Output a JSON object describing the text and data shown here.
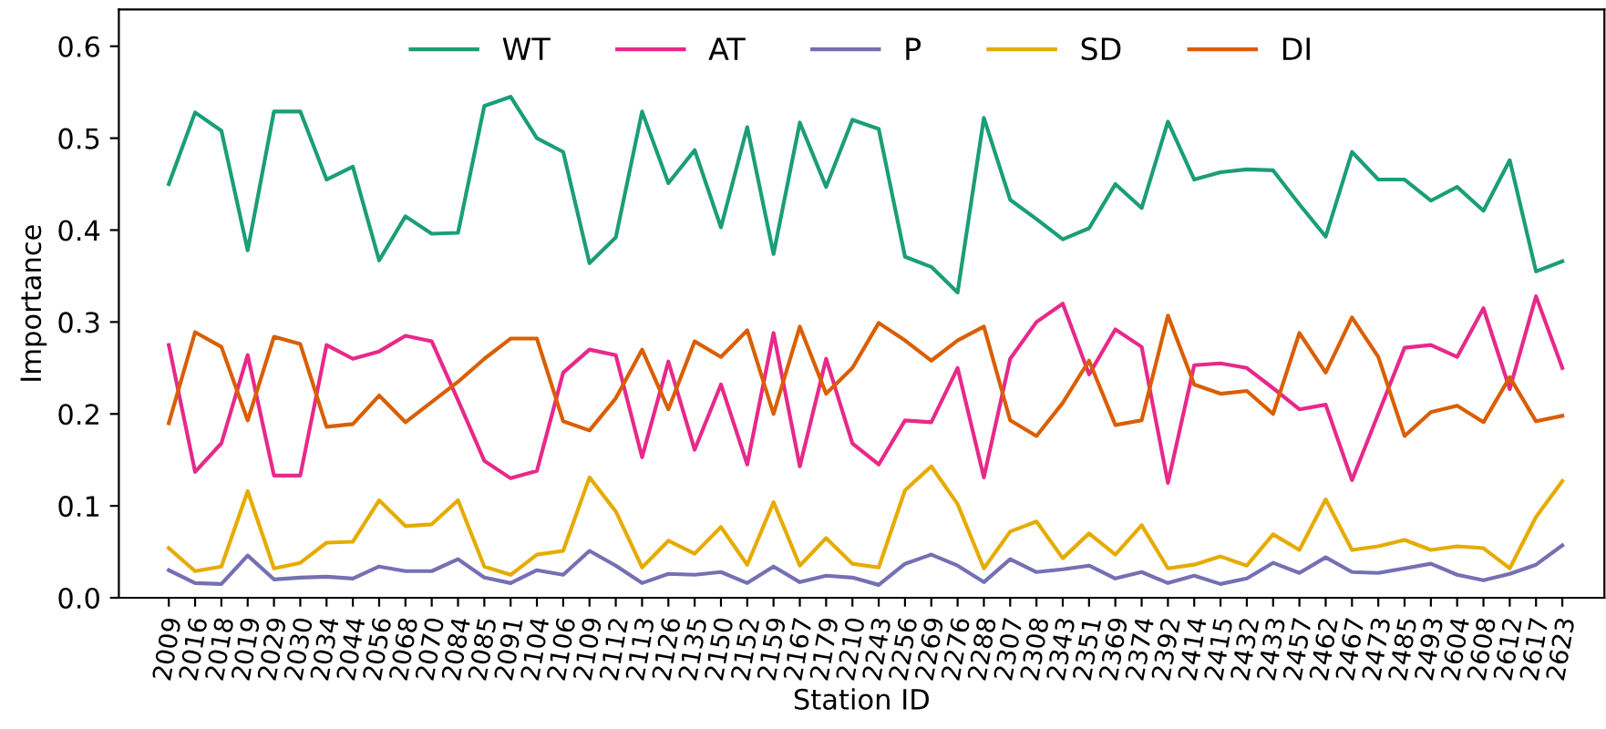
{
  "chart_data": {
    "type": "line",
    "xlabel": "Station ID",
    "ylabel": "Importance",
    "categories": [
      "2009",
      "2016",
      "2018",
      "2019",
      "2029",
      "2030",
      "2034",
      "2044",
      "2056",
      "2068",
      "2070",
      "2084",
      "2085",
      "2091",
      "2104",
      "2106",
      "2109",
      "2112",
      "2113",
      "2126",
      "2135",
      "2150",
      "2152",
      "2159",
      "2167",
      "2179",
      "2210",
      "2243",
      "2256",
      "2269",
      "2276",
      "2288",
      "2307",
      "2308",
      "2343",
      "2351",
      "2369",
      "2374",
      "2392",
      "2414",
      "2415",
      "2432",
      "2433",
      "2457",
      "2462",
      "2467",
      "2473",
      "2485",
      "2493",
      "2604",
      "2608",
      "2612",
      "2617",
      "2623"
    ],
    "series": [
      {
        "name": "WT",
        "color": "#1b9e77",
        "values": [
          0.45,
          0.528,
          0.508,
          0.378,
          0.529,
          0.529,
          0.455,
          0.469,
          0.367,
          0.415,
          0.396,
          0.397,
          0.535,
          0.545,
          0.5,
          0.485,
          0.364,
          0.392,
          0.529,
          0.451,
          0.487,
          0.403,
          0.512,
          0.374,
          0.517,
          0.447,
          0.52,
          0.51,
          0.371,
          0.36,
          0.332,
          0.522,
          0.433,
          0.412,
          0.39,
          0.402,
          0.45,
          0.424,
          0.518,
          0.455,
          0.463,
          0.466,
          0.465,
          0.428,
          0.393,
          0.485,
          0.455,
          0.455,
          0.432,
          0.447,
          0.421,
          0.476,
          0.355,
          0.366
        ]
      },
      {
        "name": "AT",
        "color": "#e7298a",
        "values": [
          0.275,
          0.137,
          0.168,
          0.264,
          0.133,
          0.133,
          0.275,
          0.26,
          0.268,
          0.285,
          0.279,
          0.215,
          0.149,
          0.13,
          0.138,
          0.245,
          0.27,
          0.264,
          0.153,
          0.257,
          0.161,
          0.232,
          0.145,
          0.288,
          0.143,
          0.26,
          0.168,
          0.145,
          0.193,
          0.191,
          0.25,
          0.131,
          0.26,
          0.3,
          0.32,
          0.243,
          0.292,
          0.273,
          0.125,
          0.253,
          0.255,
          0.25,
          0.228,
          0.205,
          0.21,
          0.128,
          0.2,
          0.272,
          0.275,
          0.262,
          0.315,
          0.227,
          0.328,
          0.25
        ]
      },
      {
        "name": "P",
        "color": "#7570b3",
        "values": [
          0.03,
          0.016,
          0.015,
          0.046,
          0.02,
          0.022,
          0.023,
          0.021,
          0.034,
          0.029,
          0.029,
          0.042,
          0.022,
          0.016,
          0.03,
          0.025,
          0.051,
          0.035,
          0.016,
          0.026,
          0.025,
          0.028,
          0.016,
          0.034,
          0.017,
          0.024,
          0.022,
          0.014,
          0.037,
          0.047,
          0.035,
          0.017,
          0.042,
          0.028,
          0.031,
          0.035,
          0.021,
          0.028,
          0.016,
          0.024,
          0.015,
          0.021,
          0.038,
          0.027,
          0.044,
          0.028,
          0.027,
          0.032,
          0.037,
          0.025,
          0.019,
          0.026,
          0.036,
          0.057
        ]
      },
      {
        "name": "SD",
        "color": "#e6ab02",
        "values": [
          0.054,
          0.029,
          0.034,
          0.116,
          0.032,
          0.038,
          0.06,
          0.061,
          0.106,
          0.078,
          0.08,
          0.106,
          0.034,
          0.025,
          0.047,
          0.051,
          0.131,
          0.094,
          0.033,
          0.062,
          0.048,
          0.077,
          0.036,
          0.104,
          0.035,
          0.065,
          0.037,
          0.033,
          0.117,
          0.143,
          0.102,
          0.032,
          0.072,
          0.083,
          0.043,
          0.07,
          0.047,
          0.079,
          0.032,
          0.036,
          0.045,
          0.035,
          0.069,
          0.052,
          0.107,
          0.052,
          0.056,
          0.063,
          0.052,
          0.056,
          0.054,
          0.032,
          0.088,
          0.127
        ]
      },
      {
        "name": "DI",
        "color": "#d95f02",
        "values": [
          0.19,
          0.289,
          0.273,
          0.193,
          0.284,
          0.276,
          0.186,
          0.189,
          0.22,
          0.191,
          0.213,
          0.235,
          0.26,
          0.282,
          0.282,
          0.192,
          0.182,
          0.217,
          0.27,
          0.205,
          0.279,
          0.262,
          0.291,
          0.2,
          0.295,
          0.222,
          0.25,
          0.299,
          0.28,
          0.258,
          0.28,
          0.295,
          0.193,
          0.176,
          0.212,
          0.258,
          0.188,
          0.193,
          0.307,
          0.232,
          0.222,
          0.225,
          0.2,
          0.288,
          0.245,
          0.305,
          0.262,
          0.176,
          0.202,
          0.209,
          0.191,
          0.24,
          0.192,
          0.198
        ]
      }
    ],
    "ylim": [
      0,
      0.64
    ],
    "yticks": [
      {
        "value": 0,
        "label": "0.0"
      },
      {
        "value": 0.1,
        "label": "0.1"
      },
      {
        "value": 0.2,
        "label": "0.2"
      },
      {
        "value": 0.3,
        "label": "0.3"
      },
      {
        "value": 0.4,
        "label": "0.4"
      },
      {
        "value": 0.5,
        "label": "0.5"
      },
      {
        "value": 0.6,
        "label": "0.6"
      }
    ],
    "legend": "top",
    "grid": false
  }
}
